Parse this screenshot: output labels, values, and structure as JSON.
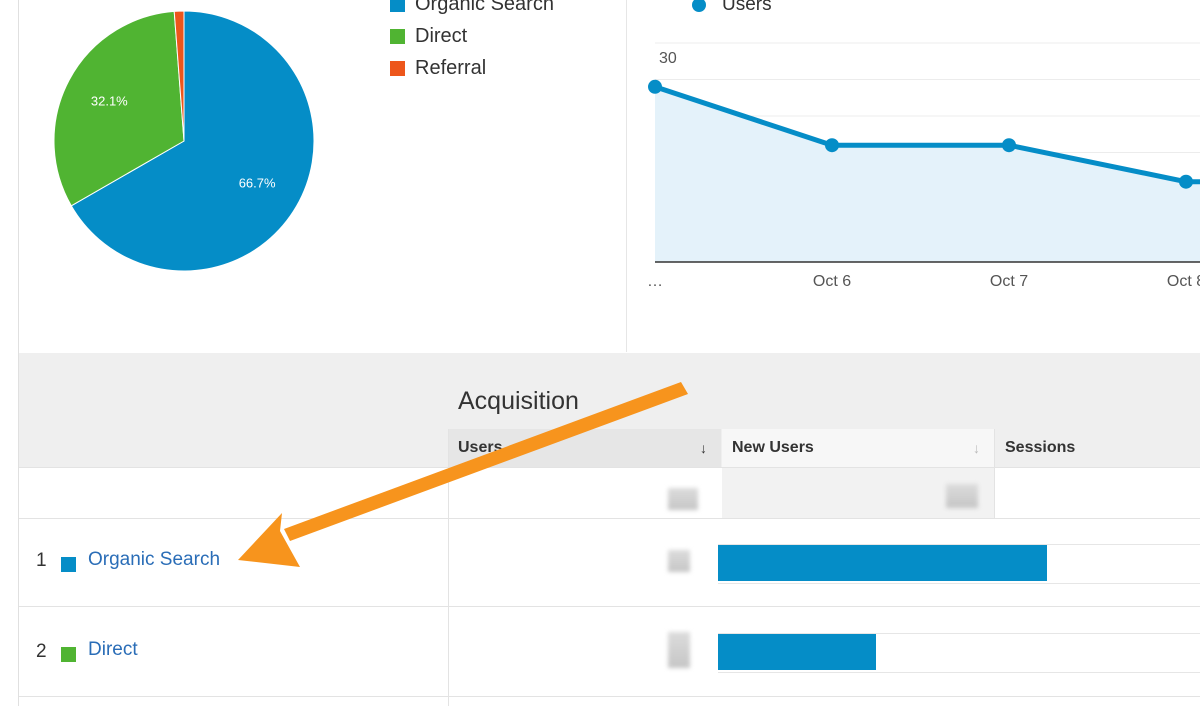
{
  "pie": {
    "slices": [
      {
        "label": "Organic Search",
        "value": 66.7,
        "color": "#058dc7",
        "pct_text": "66.7%"
      },
      {
        "label": "Direct",
        "value": 32.1,
        "color": "#50b432",
        "pct_text": "32.1%"
      },
      {
        "label": "Referral",
        "value": 1.2,
        "color": "#ed561b",
        "pct_text": ""
      }
    ]
  },
  "legend": [
    {
      "label": "Organic Search",
      "color": "#058dc7"
    },
    {
      "label": "Direct",
      "color": "#50b432"
    },
    {
      "label": "Referral",
      "color": "#ed561b"
    }
  ],
  "chart_data": {
    "type": "line",
    "series": [
      {
        "name": "Users",
        "values": [
          24,
          16,
          16,
          11
        ]
      }
    ],
    "x": [
      "…",
      "Oct 6",
      "Oct 7",
      "Oct 8"
    ],
    "ylim": [
      0,
      30
    ],
    "yticks": [
      "30",
      "20",
      "10"
    ],
    "color": "#058dc7",
    "fill": "#e4f2fa"
  },
  "table": {
    "group_title": "Acquisition",
    "columns": [
      "Users",
      "New Users",
      "Sessions"
    ],
    "rows": [
      {
        "num": "1",
        "label": "Organic Search",
        "color": "#058dc7",
        "bar_fraction": 0.685
      },
      {
        "num": "2",
        "label": "Direct",
        "color": "#50b432",
        "bar_fraction": 0.33
      }
    ]
  },
  "annotation": {
    "arrow_color": "#f7941d"
  }
}
